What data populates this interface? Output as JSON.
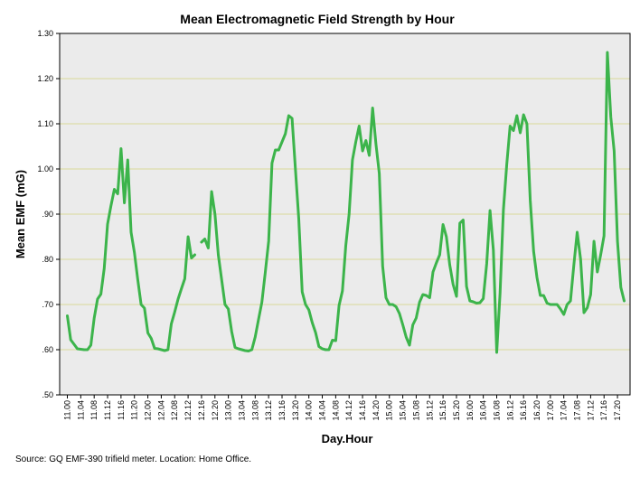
{
  "chart_data": {
    "type": "line",
    "title": "Mean Electromagnetic Field Strength by Hour",
    "xlabel": "Day.Hour",
    "ylabel": "Mean EMF (mG)",
    "source": "Source: GQ EMF-390 trifield meter. Location: Home Office.",
    "ylim": [
      0.5,
      1.3
    ],
    "yticks": [
      ".50",
      ".60",
      ".70",
      ".80",
      ".90",
      "1.00",
      "1.10",
      "1.20",
      "1.30"
    ],
    "ytick_values": [
      0.5,
      0.6,
      0.7,
      0.8,
      0.9,
      1.0,
      1.1,
      1.2,
      1.3
    ],
    "grid": true,
    "line_color": "#3cb44b",
    "plot_bg": "#ebebeb",
    "grid_color": "#d9d99a",
    "x_tick_labels": [
      "11.00",
      "11.04",
      "11.08",
      "11.12",
      "11.16",
      "11.20",
      "12.00",
      "12.04",
      "12.08",
      "12.12",
      "12.16",
      "12.20",
      "13.00",
      "13.04",
      "13.08",
      "13.12",
      "13.16",
      "13.20",
      "14.00",
      "14.04",
      "14.08",
      "14.12",
      "14.16",
      "14.20",
      "15.00",
      "15.04",
      "15.08",
      "15.12",
      "15.16",
      "15.20",
      "16.00",
      "16.04",
      "16.08",
      "16.12",
      "16.16",
      "16.20",
      "17.00",
      "17.04",
      "17.08",
      "17.12",
      "17.16",
      "17.20"
    ],
    "series": [
      {
        "name": "Mean EMF",
        "values": [
          0.675,
          0.622,
          0.612,
          0.602,
          0.601,
          0.6,
          0.6,
          0.61,
          0.67,
          0.712,
          0.723,
          0.78,
          0.878,
          0.918,
          0.955,
          0.945,
          1.045,
          0.925,
          1.02,
          0.86,
          0.815,
          0.755,
          0.7,
          0.692,
          0.637,
          0.625,
          0.603,
          0.602,
          0.6,
          0.598,
          0.6,
          0.657,
          0.683,
          0.712,
          0.735,
          0.757,
          0.85,
          0.803,
          0.81,
          null,
          0.838,
          0.845,
          0.825,
          0.95,
          0.9,
          0.81,
          0.755,
          0.7,
          0.69,
          0.64,
          0.605,
          0.602,
          0.6,
          0.598,
          0.597,
          0.6,
          0.628,
          0.667,
          0.705,
          0.77,
          0.84,
          1.013,
          1.042,
          1.042,
          1.06,
          1.078,
          1.118,
          1.112,
          1.0,
          0.89,
          0.728,
          0.7,
          0.688,
          0.66,
          0.638,
          0.607,
          0.602,
          0.6,
          0.6,
          0.621,
          0.62,
          0.698,
          0.73,
          0.83,
          0.9,
          1.02,
          1.06,
          1.095,
          1.04,
          1.063,
          1.03,
          1.135,
          1.055,
          0.99,
          0.785,
          0.715,
          0.7,
          0.7,
          0.695,
          0.68,
          0.655,
          0.628,
          0.61,
          0.655,
          0.67,
          0.705,
          0.722,
          0.72,
          0.715,
          0.772,
          0.792,
          0.81,
          0.877,
          0.85,
          0.788,
          0.745,
          0.718,
          0.88,
          0.887,
          0.74,
          0.708,
          0.706,
          0.703,
          0.704,
          0.713,
          0.79,
          0.908,
          0.82,
          0.594,
          0.725,
          0.91,
          1.01,
          1.095,
          1.085,
          1.118,
          1.08,
          1.12,
          1.1,
          0.93,
          0.818,
          0.76,
          0.72,
          0.72,
          0.703,
          0.7,
          0.7,
          0.7,
          0.69,
          0.678,
          0.7,
          0.708,
          0.787,
          0.86,
          0.8,
          0.682,
          0.693,
          0.722,
          0.84,
          0.772,
          0.81,
          0.852,
          1.258,
          1.115,
          1.04,
          0.84,
          0.738,
          0.708
        ]
      }
    ]
  }
}
